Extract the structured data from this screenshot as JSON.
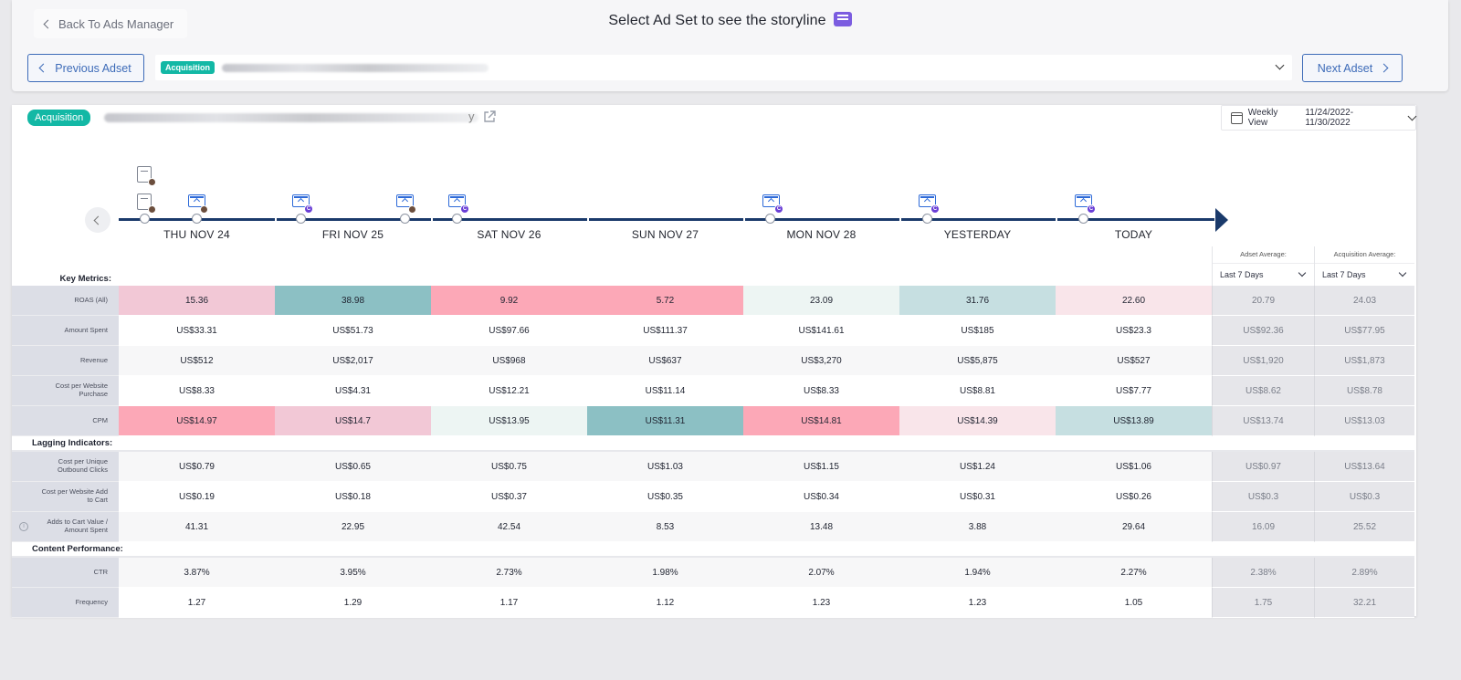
{
  "header": {
    "back_label": "Back To Ads Manager",
    "title": "Select Ad Set to see the storyline",
    "prev_label": "Previous Adset",
    "next_label": "Next Adset",
    "adset_tag": "Acquisition"
  },
  "main": {
    "tag": "Acquisition",
    "name_tail": "y",
    "date_picker": {
      "view": "Weekly View",
      "range": "11/24/2022-11/30/2022"
    }
  },
  "timeline": {
    "days": [
      "THU NOV 24",
      "FRI NOV 25",
      "SAT NOV 26",
      "SUN NOV 27",
      "MON NOV 28",
      "YESTERDAY",
      "TODAY"
    ]
  },
  "averages": {
    "adset_label": "Adset Average:",
    "adset_period": "Last 7 Days",
    "acq_label": "Acquisition Average:",
    "acq_period": "Last 7 Days"
  },
  "sections": {
    "key": "Key Metrics:",
    "lagging": "Lagging Indicators:",
    "content": "Content Performance:"
  },
  "colors": {
    "pink_strong": "#fca8b7",
    "pink_mid": "#f2c8d6",
    "pink_light": "#f9e5ea",
    "teal_strong": "#8cc0c4",
    "teal_light": "#c6dfe1",
    "mint": "#edf5f3",
    "accent": "#13b8a5",
    "timeline": "#1a3a6b"
  },
  "rows": [
    {
      "label": "ROAS (All)",
      "values": [
        "15.36",
        "38.98",
        "9.92",
        "5.72",
        "23.09",
        "31.76",
        "22.60"
      ],
      "adset_avg": "20.79",
      "acq_avg": "24.03"
    },
    {
      "label": "Amount Spent",
      "values": [
        "US$33.31",
        "US$51.73",
        "US$97.66",
        "US$111.37",
        "US$141.61",
        "US$185",
        "US$23.3"
      ],
      "adset_avg": "US$92.36",
      "acq_avg": "US$77.95"
    },
    {
      "label": "Revenue",
      "values": [
        "US$512",
        "US$2,017",
        "US$968",
        "US$637",
        "US$3,270",
        "US$5,875",
        "US$527"
      ],
      "adset_avg": "US$1,920",
      "acq_avg": "US$1,873"
    },
    {
      "label": "Cost per Website Purchase",
      "values": [
        "US$8.33",
        "US$4.31",
        "US$12.21",
        "US$11.14",
        "US$8.33",
        "US$8.81",
        "US$7.77"
      ],
      "adset_avg": "US$8.62",
      "acq_avg": "US$8.78"
    },
    {
      "label": "CPM",
      "values": [
        "US$14.97",
        "US$14.7",
        "US$13.95",
        "US$11.31",
        "US$14.81",
        "US$14.39",
        "US$13.89"
      ],
      "adset_avg": "US$13.74",
      "acq_avg": "US$13.03"
    },
    {
      "label": "Cost per Unique Outbound Clicks",
      "values": [
        "US$0.79",
        "US$0.65",
        "US$0.75",
        "US$1.03",
        "US$1.15",
        "US$1.24",
        "US$1.06"
      ],
      "adset_avg": "US$0.97",
      "acq_avg": "US$13.64"
    },
    {
      "label": "Cost per Website Add to Cart",
      "values": [
        "US$0.19",
        "US$0.18",
        "US$0.37",
        "US$0.35",
        "US$0.34",
        "US$0.31",
        "US$0.26"
      ],
      "adset_avg": "US$0.3",
      "acq_avg": "US$0.3"
    },
    {
      "label": "Adds to Cart Value / Amount Spent",
      "values": [
        "41.31",
        "22.95",
        "42.54",
        "8.53",
        "13.48",
        "3.88",
        "29.64"
      ],
      "adset_avg": "16.09",
      "acq_avg": "25.52"
    },
    {
      "label": "CTR",
      "values": [
        "3.87%",
        "3.95%",
        "2.73%",
        "1.98%",
        "2.07%",
        "1.94%",
        "2.27%"
      ],
      "adset_avg": "2.38%",
      "acq_avg": "2.89%"
    },
    {
      "label": "Frequency",
      "values": [
        "1.27",
        "1.29",
        "1.17",
        "1.12",
        "1.23",
        "1.23",
        "1.05"
      ],
      "adset_avg": "1.75",
      "acq_avg": "32.21"
    }
  ]
}
